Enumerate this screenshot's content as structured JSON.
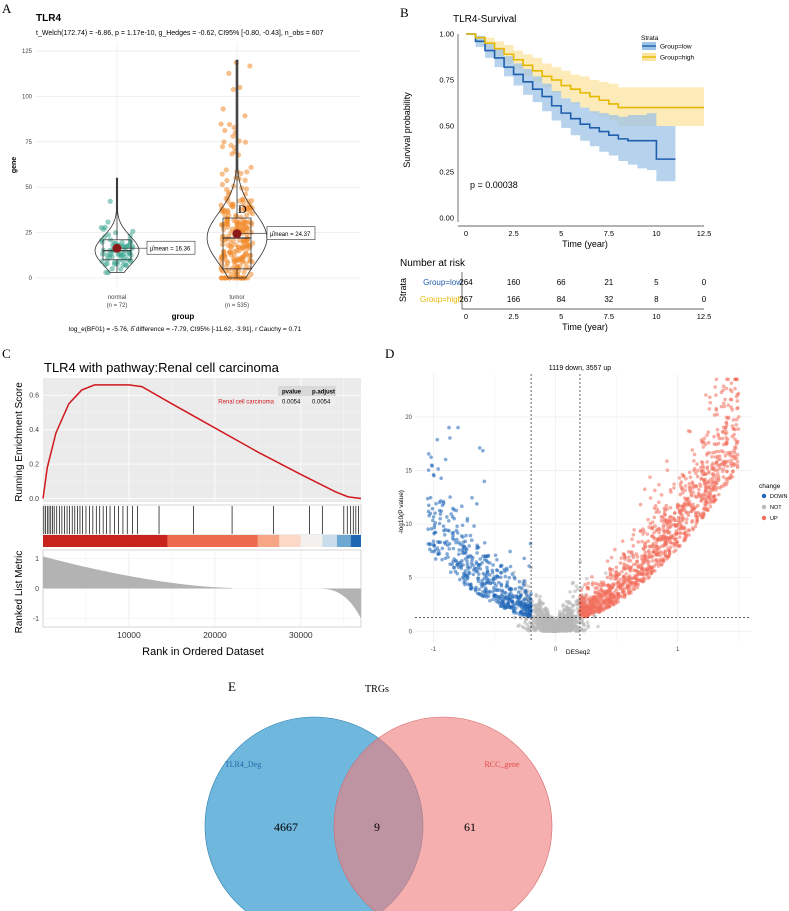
{
  "chart_data": [
    {
      "panel": "A",
      "type": "violin-box-scatter",
      "title": "TLR4",
      "subtitle": "t_Welch(172.74) = -6.86, p = 1.17e-10, g_Hedges = -0.62, CI95% [-0.80, -0.43], n_obs = 607",
      "xlabel": "group",
      "ylabel": "gene",
      "yticks": [
        0,
        25,
        50,
        75,
        100,
        125
      ],
      "ylim": [
        0,
        125
      ],
      "groups": [
        {
          "name": "normal",
          "n_label": "(n = 72)",
          "mean_label": "μ̂mean = 16.36",
          "mean": 16.36,
          "q1": 10,
          "median": 15,
          "q3": 21,
          "min": 3,
          "max": 55,
          "color": "#3aa68f"
        },
        {
          "name": "tumor",
          "n_label": "(n = 535)",
          "mean_label": "μ̂mean = 24.37",
          "mean": 24.37,
          "q1": 5,
          "median": 22,
          "q3": 33,
          "min": 0,
          "max": 120,
          "color": "#f08a2c"
        }
      ],
      "footer": "log_e(BF01) = -5.76, δ̂ difference = -7.79, CI95% [-11.62, -3.91], r Cauchy = 0.71",
      "marker": "D"
    },
    {
      "panel": "B",
      "type": "survival",
      "title": "TLR4-Survival",
      "xlabel": "Time (year)",
      "ylabel": "Survival probability",
      "xticks": [
        "0",
        "2.5",
        "5",
        "7.5",
        "10",
        "12.5"
      ],
      "yticks": [
        "0.00",
        "0.25",
        "0.50",
        "0.75",
        "1.00"
      ],
      "xlim": [
        0,
        12.5
      ],
      "ylim": [
        0,
        1
      ],
      "pvalue": "p = 0.00038",
      "legend_title": "Strata",
      "series": [
        {
          "name": "Group=low",
          "color": "#1f5fad",
          "fill": "#9dc3e6",
          "x": [
            0,
            0.5,
            1,
            1.5,
            2,
            2.5,
            3,
            3.5,
            4,
            4.5,
            5,
            5.5,
            6,
            6.5,
            7,
            7.5,
            8,
            8.5,
            9,
            9.5,
            10,
            11
          ],
          "y": [
            1.0,
            0.96,
            0.91,
            0.87,
            0.82,
            0.78,
            0.74,
            0.7,
            0.66,
            0.61,
            0.57,
            0.54,
            0.51,
            0.49,
            0.47,
            0.45,
            0.43,
            0.42,
            0.42,
            0.42,
            0.32,
            0.32
          ],
          "lo": [
            1.0,
            0.93,
            0.87,
            0.82,
            0.77,
            0.72,
            0.67,
            0.63,
            0.58,
            0.53,
            0.49,
            0.45,
            0.42,
            0.39,
            0.36,
            0.34,
            0.31,
            0.29,
            0.27,
            0.26,
            0.2,
            0.2
          ],
          "hi": [
            1.0,
            0.99,
            0.95,
            0.92,
            0.88,
            0.84,
            0.81,
            0.77,
            0.73,
            0.69,
            0.65,
            0.63,
            0.6,
            0.58,
            0.57,
            0.56,
            0.55,
            0.56,
            0.56,
            0.57,
            0.5,
            0.5
          ]
        },
        {
          "name": "Group=high",
          "color": "#e6b800",
          "fill": "#fbe4a0",
          "x": [
            0,
            0.5,
            1,
            1.5,
            2,
            2.5,
            3,
            3.5,
            4,
            4.5,
            5,
            5.5,
            6,
            6.5,
            7,
            7.5,
            8,
            9,
            10,
            12.5
          ],
          "y": [
            1.0,
            0.98,
            0.95,
            0.92,
            0.89,
            0.86,
            0.83,
            0.8,
            0.77,
            0.75,
            0.72,
            0.7,
            0.68,
            0.66,
            0.64,
            0.62,
            0.6,
            0.6,
            0.6,
            0.6
          ],
          "lo": [
            1.0,
            0.96,
            0.92,
            0.88,
            0.84,
            0.81,
            0.77,
            0.74,
            0.71,
            0.68,
            0.65,
            0.62,
            0.6,
            0.57,
            0.55,
            0.53,
            0.5,
            0.5,
            0.5,
            0.5
          ],
          "hi": [
            1.0,
            0.99,
            0.98,
            0.96,
            0.94,
            0.91,
            0.89,
            0.87,
            0.84,
            0.82,
            0.8,
            0.78,
            0.77,
            0.75,
            0.74,
            0.73,
            0.71,
            0.71,
            0.71,
            0.71
          ]
        }
      ],
      "risk_table": {
        "title": "Number at risk",
        "ylabel": "Strata",
        "rows": [
          {
            "name": "Group=low",
            "color": "#1f5fad",
            "values": [
              "264",
              "160",
              "66",
              "21",
              "5",
              "0"
            ]
          },
          {
            "name": "Group=high",
            "color": "#e6b800",
            "values": [
              "267",
              "166",
              "84",
              "32",
              "8",
              "0"
            ]
          }
        ]
      }
    },
    {
      "panel": "C",
      "type": "gsea",
      "title": "TLR4 with pathway:Renal cell carcinoma",
      "ylabel_top": "Running Enrichment Score",
      "ylabel_bottom": "Ranked List Metric",
      "xlabel": "Rank in Ordered Dataset",
      "xticks": [
        "10000",
        "20000",
        "30000"
      ],
      "xtick_values": [
        10000,
        20000,
        30000
      ],
      "xlim": [
        0,
        37000
      ],
      "es_yticks": [
        "0.0",
        "0.2",
        "0.4",
        "0.6"
      ],
      "es_ylim": [
        -0.02,
        0.7
      ],
      "metric_yticks": [
        "1",
        "0",
        "-1"
      ],
      "table": {
        "headers": [
          "pvalue",
          "p.adjust"
        ],
        "row_label": "Renal cell carcinoma",
        "values": [
          "0.0054",
          "0.0054"
        ]
      },
      "es_curve": {
        "x": [
          0,
          500,
          1500,
          3000,
          4500,
          6000,
          8000,
          10000,
          11500,
          15000,
          20000,
          25000,
          30000,
          34000,
          35500,
          37000
        ],
        "y": [
          0.0,
          0.18,
          0.38,
          0.55,
          0.63,
          0.66,
          0.66,
          0.66,
          0.65,
          0.55,
          0.41,
          0.27,
          0.14,
          0.04,
          0.01,
          0.0
        ]
      },
      "hits": [
        100,
        300,
        500,
        700,
        900,
        1100,
        1300,
        1600,
        1900,
        2200,
        2500,
        2800,
        3100,
        3400,
        3700,
        4000,
        4300,
        4600,
        5000,
        5400,
        5800,
        6200,
        6600,
        7000,
        7400,
        7800,
        8300,
        8800,
        9300,
        9800,
        10400,
        11000,
        13500,
        17500,
        22000,
        26800,
        31000,
        32500,
        35000,
        35400,
        35800,
        36100,
        36400,
        36700
      ],
      "color": "#d0191e"
    },
    {
      "panel": "D",
      "type": "scatter",
      "title": "1119 down, 3557 up",
      "xlabel": "DESeq2",
      "ylabel": "-log10(P value)",
      "xticks": [
        "-1",
        "0",
        "1"
      ],
      "xtick_values": [
        -1,
        0,
        1
      ],
      "xlim": [
        -1.15,
        1.6
      ],
      "yticks": [
        "0",
        "5",
        "10",
        "15",
        "20"
      ],
      "ylim": [
        -1,
        24
      ],
      "thresholds": {
        "x": [
          -0.2,
          0.2
        ],
        "y": 1.3
      },
      "legend_title": "change",
      "legend": [
        {
          "name": "DOWN",
          "color": "#1f66b8"
        },
        {
          "name": "NOT",
          "color": "#b8b8b8"
        },
        {
          "name": "UP",
          "color": "#f26d5b"
        }
      ],
      "counts": {
        "down": 1119,
        "up": 3557
      }
    },
    {
      "panel": "E",
      "type": "venn",
      "title": "TRGs",
      "sets": [
        {
          "name": "TLR4_Deg",
          "only": "4667",
          "color": "#3f9fd1"
        },
        {
          "name": "RCC_gene",
          "only": "61",
          "color": "#f07e7e"
        }
      ],
      "intersection": "9"
    }
  ],
  "panel_labels": {
    "a": "A",
    "b": "B",
    "c": "C",
    "d": "D",
    "e": "E"
  }
}
